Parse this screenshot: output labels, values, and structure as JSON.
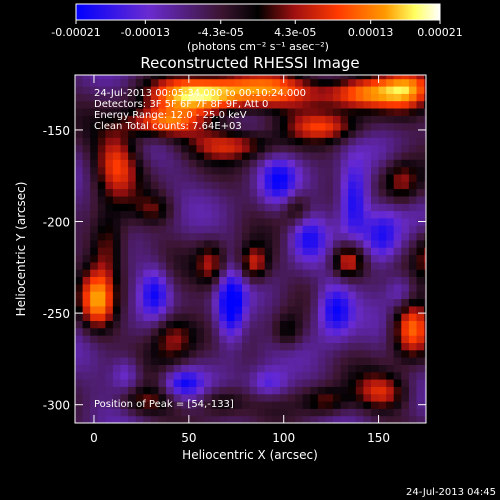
{
  "colorbar": {
    "tick_labels": [
      "-0.00021",
      "-0.00013",
      "-4.3e-05",
      "4.3e-05",
      "0.00013",
      "0.00021"
    ],
    "tick_values": [
      -0.00021,
      -0.00013,
      -4.3e-05,
      4.3e-05,
      0.00013,
      0.00021
    ],
    "range": [
      -0.00021,
      0.00021
    ],
    "unit_label": "(photons cm⁻² s⁻¹ asec⁻²)",
    "colors": [
      "#0000ff",
      "#6a2bd0",
      "#3b1530",
      "#000000",
      "#a01010",
      "#ff3a00",
      "#ff9a00",
      "#ffff60",
      "#ffffff"
    ]
  },
  "chart_data": {
    "type": "heatmap",
    "title": "Reconstructed RHESSI Image",
    "xlabel": "Heliocentric X (arcsec)",
    "ylabel": "Heliocentric Y (arcsec)",
    "xlim": [
      -10,
      175
    ],
    "ylim": [
      -310,
      -120
    ],
    "xticks": [
      0,
      50,
      100,
      150
    ],
    "yticks": [
      -150,
      -200,
      -250,
      -300
    ],
    "xtick_labels": [
      "0",
      "50",
      "100",
      "150"
    ],
    "ytick_labels": [
      "-150",
      "-200",
      "-250",
      "-300"
    ],
    "annotations": [
      "24-Jul-2013 00:05:34.000 to 00:10:24.000",
      "Detectors: 3F 5F 6F 7F 8F 9F, Att 0",
      "Energy Range: 12.0 - 25.0 keV",
      "Clean    Total counts: 7.64E+03"
    ],
    "peak_label": "Position of Peak = [54,-133]",
    "peak": [
      54,
      -133
    ],
    "grid": false
  },
  "footer": {
    "timestamp": "24-Jul-2013 04:45"
  }
}
